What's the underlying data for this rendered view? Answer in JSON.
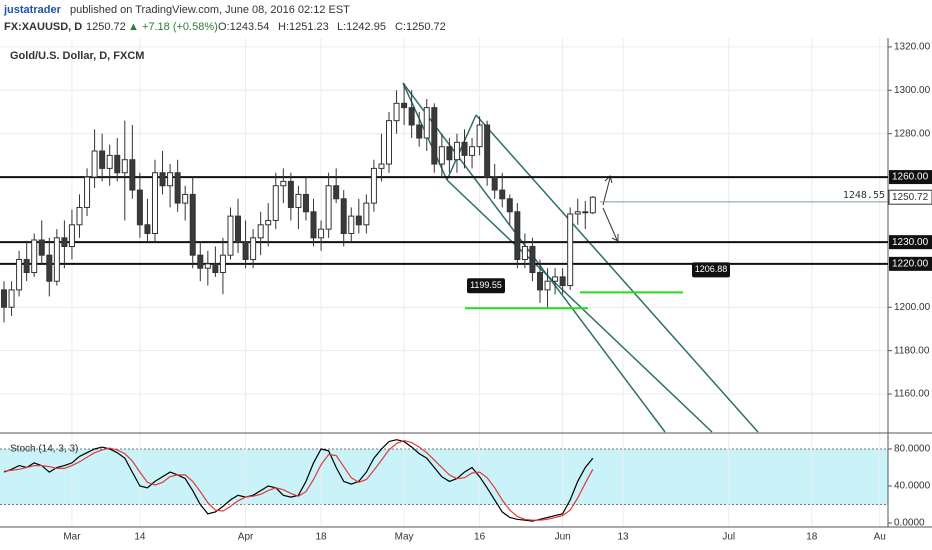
{
  "header": {
    "user": "justatrader",
    "published": "published on TradingView.com, June 08, 2016 02:12 EST",
    "symbol": "FX:XAUUSD, D",
    "price": "1250.72",
    "change": "▲ +7.18 (+0.58%)",
    "ohlc": [
      "O:1243.54",
      "H:1251.23",
      "L:1242.95",
      "C:1250.72"
    ]
  },
  "chart_data": [
    {
      "type": "candlestick",
      "title": "Gold/U.S. Dollar, D, FXCM",
      "open": [
        1208,
        1200,
        1208,
        1222,
        1216,
        1231,
        1224,
        1212,
        1232,
        1228,
        1238,
        1246,
        1260,
        1272,
        1264,
        1270,
        1262,
        1268,
        1254,
        1238,
        1234,
        1262,
        1256,
        1262,
        1248,
        1252,
        1224,
        1218,
        1220,
        1216,
        1224,
        1242,
        1230,
        1222,
        1232,
        1238,
        1240,
        1256,
        1258,
        1246,
        1252,
        1244,
        1232,
        1236,
        1256,
        1250,
        1234,
        1242,
        1238,
        1248,
        1264,
        1266,
        1286,
        1294,
        1292,
        1284,
        1278,
        1292,
        1266,
        1274,
        1268,
        1276,
        1270,
        1274,
        1284,
        1260,
        1254,
        1250,
        1244,
        1222,
        1228,
        1216,
        1208,
        1212,
        1214,
        1210,
        1243,
        1244,
        1243.54
      ],
      "high": [
        1212,
        1212,
        1226,
        1230,
        1234,
        1240,
        1232,
        1236,
        1240,
        1245,
        1252,
        1264,
        1282,
        1280,
        1275,
        1278,
        1286,
        1284,
        1262,
        1250,
        1268,
        1272,
        1266,
        1268,
        1256,
        1260,
        1230,
        1226,
        1228,
        1232,
        1246,
        1250,
        1240,
        1236,
        1244,
        1248,
        1262,
        1264,
        1262,
        1256,
        1260,
        1250,
        1240,
        1262,
        1264,
        1254,
        1246,
        1250,
        1252,
        1268,
        1280,
        1290,
        1300,
        1303,
        1300,
        1290,
        1296,
        1294,
        1280,
        1278,
        1280,
        1282,
        1278,
        1288,
        1286,
        1266,
        1262,
        1252,
        1248,
        1234,
        1232,
        1222,
        1218,
        1218,
        1218,
        1246,
        1250,
        1249,
        1251.23
      ],
      "low": [
        1193,
        1196,
        1205,
        1212,
        1214,
        1220,
        1205,
        1210,
        1218,
        1222,
        1232,
        1242,
        1255,
        1258,
        1256,
        1258,
        1240,
        1250,
        1232,
        1230,
        1230,
        1252,
        1246,
        1244,
        1240,
        1218,
        1212,
        1210,
        1214,
        1206,
        1222,
        1225,
        1218,
        1218,
        1224,
        1228,
        1236,
        1248,
        1240,
        1236,
        1240,
        1228,
        1226,
        1232,
        1248,
        1228,
        1230,
        1234,
        1234,
        1244,
        1258,
        1262,
        1280,
        1284,
        1278,
        1274,
        1272,
        1262,
        1260,
        1262,
        1262,
        1264,
        1264,
        1270,
        1256,
        1250,
        1246,
        1238,
        1218,
        1218,
        1212,
        1202,
        1200,
        1206,
        1206,
        1208,
        1238,
        1236,
        1242.95
      ],
      "close": [
        1200,
        1208,
        1222,
        1216,
        1231,
        1224,
        1212,
        1232,
        1228,
        1238,
        1246,
        1260,
        1272,
        1264,
        1270,
        1262,
        1268,
        1254,
        1238,
        1234,
        1262,
        1256,
        1262,
        1248,
        1252,
        1224,
        1218,
        1220,
        1216,
        1224,
        1242,
        1230,
        1222,
        1232,
        1238,
        1240,
        1256,
        1258,
        1246,
        1252,
        1244,
        1232,
        1236,
        1256,
        1250,
        1234,
        1242,
        1238,
        1248,
        1264,
        1266,
        1286,
        1294,
        1292,
        1284,
        1278,
        1292,
        1266,
        1274,
        1268,
        1276,
        1270,
        1274,
        1284,
        1260,
        1254,
        1250,
        1244,
        1222,
        1228,
        1216,
        1208,
        1212,
        1214,
        1210,
        1243,
        1244,
        1243.54,
        1250.72
      ],
      "up_color": "#ffffff",
      "down_color": "#3a3a3a",
      "grid": true,
      "xlim": [
        -0.53,
        117.1
      ],
      "xticks": [
        {
          "value": 9,
          "label": "Mar"
        },
        {
          "value": 18,
          "label": "14"
        },
        {
          "value": 32,
          "label": "Apr"
        },
        {
          "value": 42,
          "label": "18"
        },
        {
          "value": 53,
          "label": "May"
        },
        {
          "value": 63,
          "label": "16"
        },
        {
          "value": 74,
          "label": "Jun"
        },
        {
          "value": 82,
          "label": "13"
        },
        {
          "value": 96,
          "label": "Jul"
        },
        {
          "value": 107,
          "label": "18"
        },
        {
          "value": 116,
          "label": "Au"
        }
      ],
      "ylim": [
        1142.5,
        1324.1
      ],
      "yticks": [
        {
          "value": 1160,
          "label": "1160.00"
        },
        {
          "value": 1180,
          "label": "1180.00"
        },
        {
          "value": 1200,
          "label": "1200.00"
        },
        {
          "value": 1280,
          "label": "1280.00"
        },
        {
          "value": 1300,
          "label": "1300.00"
        },
        {
          "value": 1320,
          "label": "1320.00"
        }
      ],
      "hlines": [
        {
          "value": 1260,
          "label": "1260.00"
        },
        {
          "value": 1230,
          "label": "1230.00"
        },
        {
          "value": 1220,
          "label": "1220.00"
        }
      ],
      "last_price": {
        "value": 1250.72,
        "label": "1250.72"
      },
      "annotations": [
        {
          "value": 1199.55,
          "label": "1199.55"
        },
        {
          "value": 1206.88,
          "label": "1206.88"
        },
        {
          "value": 1248.55,
          "label": "1248.55"
        }
      ]
    },
    {
      "type": "line",
      "title": "Stoch (14, 3, 3)",
      "series": [
        {
          "color": "#000000",
          "values": [
            55,
            58,
            62,
            60,
            65,
            62,
            55,
            60,
            62,
            65,
            72,
            76,
            80,
            82,
            80,
            76,
            70,
            55,
            40,
            38,
            45,
            50,
            55,
            52,
            48,
            35,
            20,
            10,
            12,
            18,
            25,
            30,
            28,
            30,
            35,
            40,
            38,
            30,
            28,
            30,
            45,
            65,
            80,
            78,
            60,
            45,
            42,
            45,
            55,
            70,
            80,
            88,
            90,
            88,
            82,
            75,
            70,
            60,
            50,
            45,
            48,
            55,
            60,
            50,
            38,
            25,
            12,
            6,
            4,
            3,
            2,
            4,
            6,
            8,
            10,
            25,
            45,
            60,
            70
          ]
        },
        {
          "color": "#e53935",
          "values": [
            56,
            57,
            58,
            60,
            62,
            62,
            61,
            59,
            59,
            62,
            66,
            71,
            76,
            79,
            81,
            79,
            75,
            67,
            55,
            44,
            41,
            44,
            50,
            52,
            52,
            45,
            34,
            22,
            14,
            13,
            18,
            24,
            28,
            29,
            31,
            35,
            38,
            36,
            32,
            29,
            34,
            47,
            63,
            74,
            73,
            61,
            49,
            44,
            47,
            57,
            68,
            79,
            86,
            89,
            87,
            82,
            76,
            68,
            60,
            52,
            48,
            49,
            54,
            55,
            49,
            38,
            25,
            14,
            7,
            4,
            3,
            3,
            4,
            6,
            8,
            14,
            27,
            43,
            58
          ]
        }
      ],
      "band": [
        20,
        80
      ],
      "band_color": "#c9f3f9",
      "ylim": [
        -4.3,
        95.1
      ],
      "yticks": [
        {
          "value": 80,
          "label": "80.0000"
        },
        {
          "value": 40,
          "label": "40.0000"
        },
        {
          "value": 0,
          "label": "0.0000"
        }
      ]
    }
  ]
}
